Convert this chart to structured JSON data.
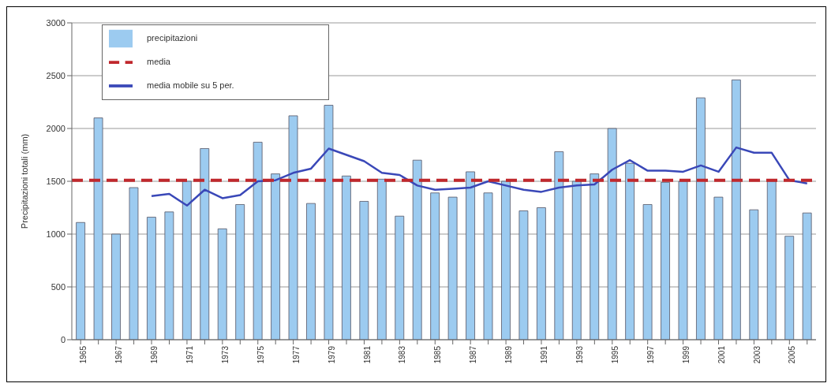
{
  "chart_data": {
    "type": "bar",
    "ylabel": "Precipitazioni totali (mm)",
    "categories": [
      "1965",
      null,
      "1967",
      null,
      "1969",
      null,
      "1971",
      null,
      "1973",
      null,
      "1975",
      null,
      "1977",
      null,
      "1979",
      null,
      "1981",
      null,
      "1983",
      null,
      "1985",
      null,
      "1987",
      null,
      "1989",
      null,
      "1991",
      null,
      "1993",
      null,
      "1995",
      null,
      "1997",
      null,
      "1999",
      null,
      "2001",
      null,
      "2003",
      null,
      "2005",
      null
    ],
    "series": [
      {
        "name": "precipitazioni",
        "color": "#9ccbf0",
        "values": [
          1110,
          2100,
          1000,
          1440,
          1160,
          1210,
          1500,
          1810,
          1050,
          1280,
          1870,
          1570,
          2120,
          1290,
          2220,
          1550,
          1310,
          1520,
          1170,
          1700,
          1390,
          1350,
          1590,
          1390,
          1500,
          1220,
          1250,
          1780,
          1500,
          1570,
          2000,
          1670,
          1280,
          1490,
          1500,
          2290,
          1350,
          2460,
          1230,
          1500,
          980,
          1200
        ]
      },
      {
        "name": "media mobile su 5 per.",
        "type": "line",
        "color": "#3a48b8",
        "values": [
          null,
          null,
          null,
          null,
          1360,
          1380,
          1270,
          1420,
          1340,
          1370,
          1500,
          1510,
          1580,
          1620,
          1810,
          1750,
          1690,
          1580,
          1560,
          1460,
          1420,
          1430,
          1440,
          1500,
          1460,
          1420,
          1400,
          1440,
          1460,
          1470,
          1610,
          1700,
          1600,
          1600,
          1590,
          1650,
          1590,
          1820,
          1770,
          1770,
          1510,
          1480
        ]
      }
    ],
    "ref_lines": [
      {
        "axis": "y",
        "value": 1510,
        "label": "media",
        "color": "#c0282d",
        "line_style": "dashed"
      }
    ],
    "ylim": [
      0,
      3000
    ],
    "yticks": [
      0,
      500,
      1000,
      1500,
      2000,
      2500,
      3000
    ],
    "grid": "y",
    "legend": "top left",
    "marker": "none"
  }
}
